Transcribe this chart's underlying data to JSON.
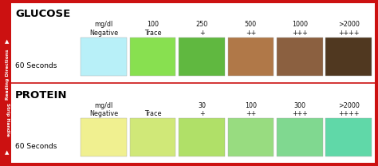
{
  "glucose": {
    "label": "GLUCOSE",
    "sublabel": "60 Seconds",
    "col_labels": [
      "mg/dl\nNegative",
      "100\nTrace",
      "250\n+",
      "500\n++",
      "1000\n+++",
      ">2000\n++++"
    ],
    "colors": [
      "#b8f0f8",
      "#88e050",
      "#60b840",
      "#b07848",
      "#8b6040",
      "#503820"
    ]
  },
  "protein": {
    "label": "PROTEIN",
    "sublabel": "60 Seconds",
    "col_labels": [
      "mg/dl\nNegative",
      "Trace",
      "30\n+",
      "100\n++",
      "300\n+++",
      ">2000\n++++"
    ],
    "colors": [
      "#f0f090",
      "#d0e878",
      "#b0e068",
      "#98dc80",
      "#80d890",
      "#60d8a8"
    ]
  },
  "border_color": "#cc1111",
  "sidebar_color": "#cc1111",
  "divider_color": "#cc1111",
  "bg_color": "#ffffff",
  "text_color": "#111111",
  "label_color": "#000000",
  "sidebar_text_top": "Reading Directions",
  "sidebar_text_bottom": "Strip Handle",
  "arrow_char": "▲",
  "figsize": [
    4.74,
    2.08
  ],
  "dpi": 100
}
